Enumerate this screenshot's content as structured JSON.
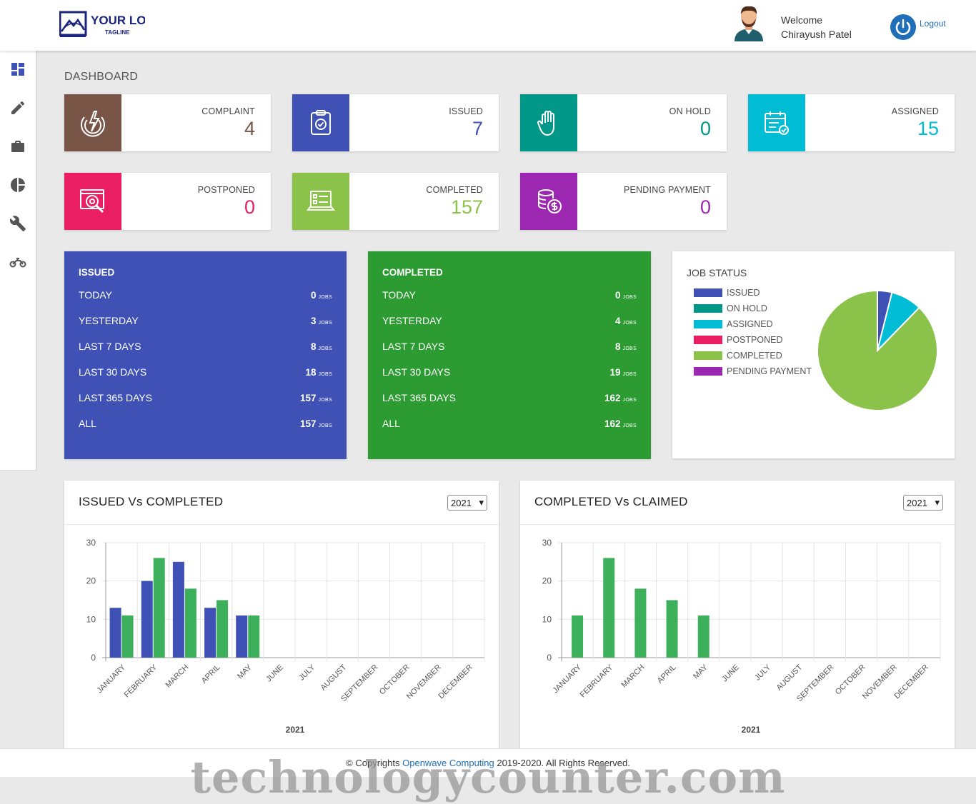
{
  "header": {
    "logo_text": "YOUR LOGO",
    "logo_tagline": "TAGLINE",
    "welcome_label": "Welcome",
    "user_name": "Chirayush Patel",
    "logout_label": "Logout"
  },
  "sidebar": {
    "items": [
      {
        "icon": "dashboard-icon"
      },
      {
        "icon": "pencil-icon"
      },
      {
        "icon": "briefcase-icon"
      },
      {
        "icon": "pie-chart-icon"
      },
      {
        "icon": "wrench-icon"
      },
      {
        "icon": "motorcycle-icon"
      }
    ]
  },
  "page_title": "DASHBOARD",
  "stats": [
    {
      "label": "COMPLAINT",
      "value": "4",
      "color": "#795548",
      "icon": "complaint-icon"
    },
    {
      "label": "ISSUED",
      "value": "7",
      "color": "#3f51b5",
      "icon": "clipboard-check-icon"
    },
    {
      "label": "ON HOLD",
      "value": "0",
      "color": "#009688",
      "icon": "hand-icon"
    },
    {
      "label": "ASSIGNED",
      "value": "15",
      "color": "#00bcd4",
      "icon": "calendar-check-icon"
    },
    {
      "label": "POSTPONED",
      "value": "0",
      "color": "#e91e63",
      "icon": "search-settings-icon"
    },
    {
      "label": "COMPLETED",
      "value": "157",
      "color": "#8bc34a",
      "icon": "laptop-checklist-icon"
    },
    {
      "label": "PENDING PAYMENT",
      "value": "0",
      "color": "#9c27b0",
      "icon": "coins-dollar-icon"
    }
  ],
  "issued_summary": {
    "title": "ISSUED",
    "color": "#3f51b5",
    "unit": "JOBS",
    "rows": [
      {
        "label": "TODAY",
        "value": "0"
      },
      {
        "label": "YESTERDAY",
        "value": "3"
      },
      {
        "label": "LAST 7 DAYS",
        "value": "8"
      },
      {
        "label": "LAST 30 DAYS",
        "value": "18"
      },
      {
        "label": "LAST 365 DAYS",
        "value": "157"
      },
      {
        "label": "ALL",
        "value": "157"
      }
    ]
  },
  "completed_summary": {
    "title": "COMPLETED",
    "color": "#2c9b32",
    "unit": "JOBS",
    "rows": [
      {
        "label": "TODAY",
        "value": "0"
      },
      {
        "label": "YESTERDAY",
        "value": "4"
      },
      {
        "label": "LAST 7 DAYS",
        "value": "8"
      },
      {
        "label": "LAST 30 DAYS",
        "value": "19"
      },
      {
        "label": "LAST 365 DAYS",
        "value": "162"
      },
      {
        "label": "ALL",
        "value": "162"
      }
    ]
  },
  "job_status": {
    "title": "JOB STATUS",
    "legend": [
      {
        "label": "ISSUED",
        "color": "#3f51b5"
      },
      {
        "label": "ON HOLD",
        "color": "#009688"
      },
      {
        "label": "ASSIGNED",
        "color": "#00bcd4"
      },
      {
        "label": "POSTPONED",
        "color": "#e91e63"
      },
      {
        "label": "COMPLETED",
        "color": "#8bc34a"
      },
      {
        "label": "PENDING PAYMENT",
        "color": "#9c27b0"
      }
    ]
  },
  "chart_left": {
    "title": "ISSUED Vs COMPLETED",
    "year_select": "2021"
  },
  "chart_right": {
    "title": "COMPLETED Vs CLAIMED",
    "year_select": "2021"
  },
  "chart_data": [
    {
      "type": "pie",
      "title": "JOB STATUS",
      "categories": [
        "ISSUED",
        "ON HOLD",
        "ASSIGNED",
        "POSTPONED",
        "COMPLETED",
        "PENDING PAYMENT"
      ],
      "values": [
        7,
        0,
        15,
        0,
        157,
        0
      ],
      "colors": [
        "#3f51b5",
        "#009688",
        "#00bcd4",
        "#e91e63",
        "#8bc34a",
        "#9c27b0"
      ],
      "legend": "left"
    },
    {
      "type": "bar",
      "title": "ISSUED Vs COMPLETED",
      "categories": [
        "JANUARY",
        "FEBRUARY",
        "MARCH",
        "APRIL",
        "MAY",
        "JUNE",
        "JULY",
        "AUGUST",
        "SEPTEMBER",
        "OCTOBER",
        "NOVEMBER",
        "DECEMBER"
      ],
      "series": [
        {
          "values": [
            13,
            20,
            25,
            13,
            11,
            0,
            0,
            0,
            0,
            0,
            0,
            0
          ],
          "color": "#3f51b5"
        },
        {
          "values": [
            11,
            26,
            18,
            15,
            11,
            0,
            0,
            0,
            0,
            0,
            0,
            0
          ],
          "color": "#3cb05a"
        }
      ],
      "xlabel": "2021",
      "ylabel": "",
      "ylim": [
        0,
        30
      ],
      "yticks": [
        0,
        10,
        20,
        30
      ],
      "grid": true
    },
    {
      "type": "bar",
      "title": "COMPLETED Vs CLAIMED",
      "categories": [
        "JANUARY",
        "FEBRUARY",
        "MARCH",
        "APRIL",
        "MAY",
        "JUNE",
        "JULY",
        "AUGUST",
        "SEPTEMBER",
        "OCTOBER",
        "NOVEMBER",
        "DECEMBER"
      ],
      "series": [
        {
          "values": [
            11,
            26,
            18,
            15,
            11,
            0,
            0,
            0,
            0,
            0,
            0,
            0
          ],
          "color": "#3cb05a"
        }
      ],
      "xlabel": "2021",
      "ylabel": "",
      "ylim": [
        0,
        30
      ],
      "yticks": [
        0,
        10,
        20,
        30
      ],
      "grid": true
    }
  ],
  "footer": {
    "prefix": "© Copyrights ",
    "company": "Openwave Computing",
    "suffix": " 2019-2020. All Rights Reserved."
  },
  "watermark": "technologycounter.com"
}
